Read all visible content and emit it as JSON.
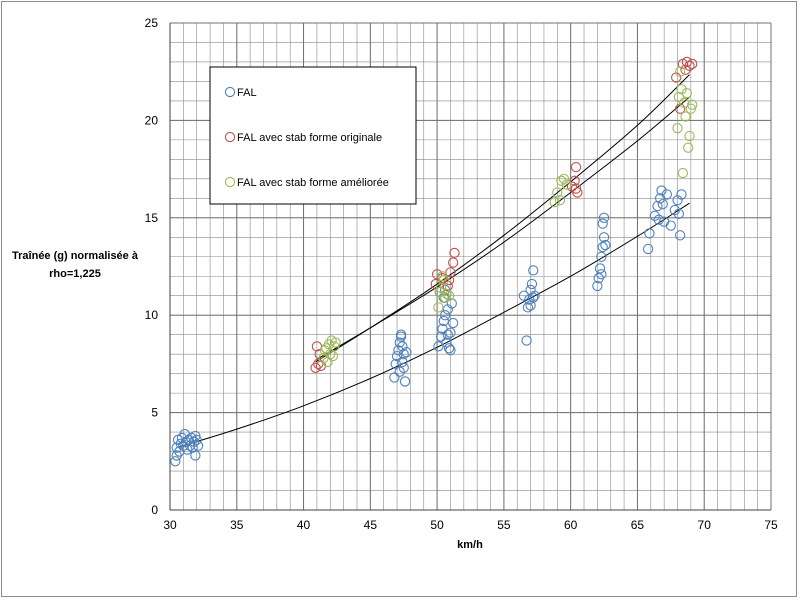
{
  "chart_data": {
    "type": "scatter",
    "title": "",
    "xlabel": "km/h",
    "ylabel_lines": [
      "Traînée (g) normalisée à",
      "rho=1,225"
    ],
    "xlim": [
      30,
      75
    ],
    "ylim": [
      0,
      25
    ],
    "x_ticks": [
      30,
      35,
      40,
      45,
      50,
      55,
      60,
      65,
      70,
      75
    ],
    "y_ticks": [
      0,
      5,
      10,
      15,
      20,
      25
    ],
    "x_tick_labels": [
      "30",
      "35",
      "40",
      "45",
      "50",
      "55",
      "60",
      "65",
      "70",
      "75"
    ],
    "y_tick_labels": [
      "0",
      "5",
      "10",
      "15",
      "20",
      "25"
    ],
    "grid": true,
    "minor_grid": true,
    "legend_position": "top-left",
    "series": [
      {
        "name": "FAL",
        "color": "#4f81bd",
        "marker": "open-circle",
        "points": [
          [
            30.4,
            2.5
          ],
          [
            30.5,
            2.8
          ],
          [
            30.5,
            3.2
          ],
          [
            30.6,
            3.6
          ],
          [
            30.7,
            3.0
          ],
          [
            30.8,
            3.4
          ],
          [
            30.9,
            3.7
          ],
          [
            31.0,
            3.3
          ],
          [
            31.1,
            3.9
          ],
          [
            31.2,
            3.5
          ],
          [
            31.3,
            3.1
          ],
          [
            31.4,
            3.6
          ],
          [
            31.5,
            3.3
          ],
          [
            31.6,
            3.7
          ],
          [
            31.7,
            3.2
          ],
          [
            31.8,
            3.5
          ],
          [
            31.9,
            2.8
          ],
          [
            32.0,
            3.6
          ],
          [
            32.1,
            3.3
          ],
          [
            31.9,
            3.8
          ],
          [
            46.8,
            6.8
          ],
          [
            46.9,
            7.5
          ],
          [
            47.0,
            7.9
          ],
          [
            47.1,
            8.2
          ],
          [
            47.2,
            8.6
          ],
          [
            47.3,
            8.9
          ],
          [
            47.2,
            7.1
          ],
          [
            47.4,
            7.6
          ],
          [
            47.5,
            8.0
          ],
          [
            47.6,
            6.6
          ],
          [
            47.4,
            8.4
          ],
          [
            47.3,
            9.0
          ],
          [
            47.5,
            7.3
          ],
          [
            47.7,
            8.1
          ],
          [
            50.1,
            8.4
          ],
          [
            50.3,
            8.9
          ],
          [
            50.4,
            9.3
          ],
          [
            50.5,
            9.7
          ],
          [
            50.6,
            10.0
          ],
          [
            50.7,
            8.6
          ],
          [
            50.8,
            10.3
          ],
          [
            50.9,
            8.3
          ],
          [
            51.0,
            9.1
          ],
          [
            51.1,
            10.6
          ],
          [
            50.5,
            10.9
          ],
          [
            50.6,
            11.3
          ],
          [
            51.2,
            9.6
          ],
          [
            51.0,
            8.2
          ],
          [
            50.8,
            9.0
          ],
          [
            56.5,
            11.0
          ],
          [
            56.7,
            8.7
          ],
          [
            56.8,
            10.4
          ],
          [
            56.9,
            10.8
          ],
          [
            57.0,
            11.3
          ],
          [
            57.1,
            11.6
          ],
          [
            57.2,
            12.3
          ],
          [
            57.3,
            11.0
          ],
          [
            57.0,
            10.5
          ],
          [
            57.2,
            10.9
          ],
          [
            62.0,
            11.5
          ],
          [
            62.1,
            11.9
          ],
          [
            62.2,
            12.4
          ],
          [
            62.3,
            13.0
          ],
          [
            62.4,
            13.5
          ],
          [
            62.5,
            14.0
          ],
          [
            62.4,
            14.7
          ],
          [
            62.5,
            15.0
          ],
          [
            62.3,
            12.1
          ],
          [
            62.6,
            13.6
          ],
          [
            65.8,
            13.4
          ],
          [
            65.9,
            14.2
          ],
          [
            66.3,
            15.1
          ],
          [
            66.5,
            15.6
          ],
          [
            66.7,
            16.0
          ],
          [
            66.8,
            16.4
          ],
          [
            66.9,
            15.7
          ],
          [
            67.0,
            14.8
          ],
          [
            67.2,
            16.2
          ],
          [
            67.5,
            14.6
          ],
          [
            67.8,
            15.4
          ],
          [
            68.0,
            15.9
          ],
          [
            68.2,
            14.1
          ],
          [
            68.3,
            16.2
          ],
          [
            68.1,
            15.2
          ],
          [
            66.6,
            14.9
          ]
        ]
      },
      {
        "name": "FAL avec stab forme originale",
        "color": "#c0504d",
        "marker": "open-circle",
        "points": [
          [
            40.9,
            7.3
          ],
          [
            41.0,
            8.4
          ],
          [
            41.1,
            7.5
          ],
          [
            41.2,
            8.0
          ],
          [
            41.3,
            7.4
          ],
          [
            49.9,
            11.6
          ],
          [
            50.0,
            12.1
          ],
          [
            50.2,
            11.2
          ],
          [
            50.4,
            11.9
          ],
          [
            50.6,
            10.9
          ],
          [
            50.8,
            11.5
          ],
          [
            51.0,
            12.2
          ],
          [
            51.2,
            12.7
          ],
          [
            51.3,
            13.2
          ],
          [
            50.9,
            11.8
          ],
          [
            60.1,
            16.6
          ],
          [
            60.3,
            16.9
          ],
          [
            60.4,
            17.6
          ],
          [
            60.5,
            16.3
          ],
          [
            60.4,
            16.5
          ],
          [
            67.9,
            22.2
          ],
          [
            68.4,
            22.9
          ],
          [
            68.6,
            22.6
          ],
          [
            68.7,
            23.0
          ],
          [
            68.9,
            22.8
          ],
          [
            69.1,
            22.9
          ],
          [
            68.2,
            20.6
          ]
        ]
      },
      {
        "name": "FAL avec stab forme améliorée",
        "color": "#9bbb59",
        "marker": "open-circle",
        "points": [
          [
            41.5,
            7.8
          ],
          [
            41.6,
            8.2
          ],
          [
            41.8,
            7.6
          ],
          [
            41.9,
            8.5
          ],
          [
            42.0,
            8.0
          ],
          [
            42.1,
            8.7
          ],
          [
            42.2,
            7.9
          ],
          [
            42.3,
            8.4
          ],
          [
            42.4,
            8.6
          ],
          [
            41.7,
            8.3
          ],
          [
            50.1,
            10.4
          ],
          [
            50.3,
            11.4
          ],
          [
            50.5,
            11.8
          ],
          [
            50.7,
            11.1
          ],
          [
            50.9,
            11.0
          ],
          [
            50.6,
            10.9
          ],
          [
            50.4,
            12.0
          ],
          [
            50.2,
            11.2
          ],
          [
            58.8,
            15.8
          ],
          [
            59.0,
            16.3
          ],
          [
            59.3,
            16.9
          ],
          [
            59.5,
            17.0
          ],
          [
            59.7,
            16.7
          ],
          [
            59.2,
            15.9
          ],
          [
            68.0,
            19.6
          ],
          [
            68.1,
            21.2
          ],
          [
            68.2,
            22.5
          ],
          [
            68.3,
            21.6
          ],
          [
            68.5,
            20.9
          ],
          [
            68.6,
            20.2
          ],
          [
            68.7,
            21.4
          ],
          [
            68.8,
            18.6
          ],
          [
            68.9,
            19.2
          ],
          [
            69.0,
            20.6
          ],
          [
            68.4,
            17.3
          ],
          [
            69.1,
            20.8
          ]
        ]
      }
    ],
    "trendlines": [
      {
        "name": "FAL trend",
        "color": "#000000",
        "x_from": 30.5,
        "x_to": 68.9,
        "points": [
          [
            30.5,
            3.2
          ],
          [
            35.0,
            4.15
          ],
          [
            40.0,
            5.35
          ],
          [
            45.0,
            6.75
          ],
          [
            50.0,
            8.35
          ],
          [
            55.0,
            10.15
          ],
          [
            60.0,
            12.0
          ],
          [
            65.0,
            14.05
          ],
          [
            68.9,
            15.75
          ]
        ]
      },
      {
        "name": "FAL avec stab forme originale trend",
        "color": "#000000",
        "x_from": 40.9,
        "x_to": 68.9,
        "points": [
          [
            40.9,
            7.6
          ],
          [
            45.0,
            9.35
          ],
          [
            50.0,
            11.6
          ],
          [
            55.0,
            14.1
          ],
          [
            60.0,
            16.85
          ],
          [
            65.0,
            19.75
          ],
          [
            68.9,
            22.35
          ]
        ]
      },
      {
        "name": "FAL avec stab forme améliorée trend",
        "color": "#000000",
        "x_from": 40.9,
        "x_to": 68.9,
        "points": [
          [
            40.9,
            7.7
          ],
          [
            45.0,
            9.35
          ],
          [
            50.0,
            11.45
          ],
          [
            55.0,
            13.75
          ],
          [
            60.0,
            16.3
          ],
          [
            65.0,
            18.95
          ],
          [
            68.9,
            21.2
          ]
        ]
      }
    ]
  }
}
